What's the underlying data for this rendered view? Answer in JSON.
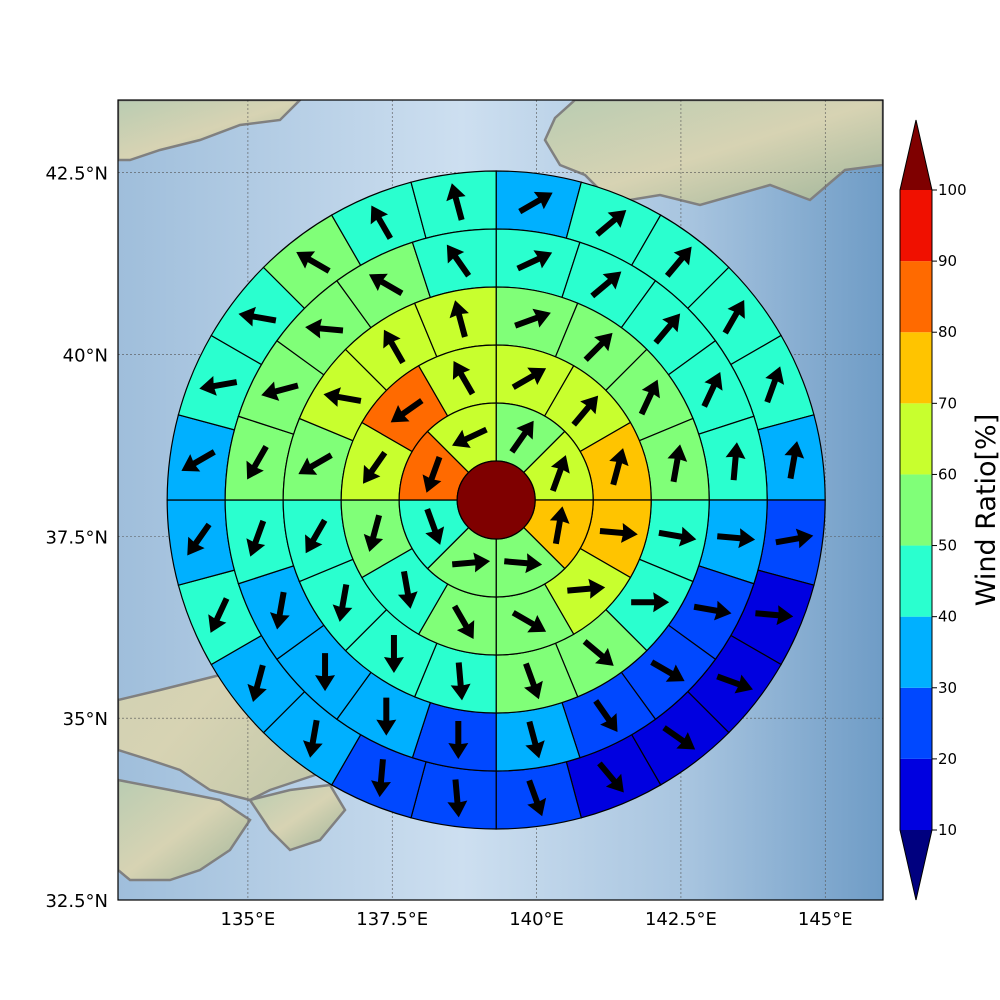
{
  "chart_data": {
    "type": "polar-sector-map",
    "map": {
      "lon_range": [
        132.75,
        146.0
      ],
      "lat_range": [
        32.5,
        43.5
      ],
      "lon_ticks": [
        135,
        137.5,
        140,
        142.5,
        145
      ],
      "lon_tick_labels": [
        "135°E",
        "137.5°E",
        "140°E",
        "142.5°E",
        "145°E"
      ],
      "lat_ticks": [
        32.5,
        35,
        37.5,
        40,
        42.5
      ],
      "lat_tick_labels": [
        "32.5°N",
        "35°N",
        "37.5°N",
        "40°N",
        "42.5°N"
      ],
      "gridlines": true,
      "background": "shaded-relief",
      "coastlines": true
    },
    "center": {
      "lon": 139.3,
      "lat": 38.0
    },
    "center_value": 100,
    "ring_labels_degrees": [
      0.5,
      1.3,
      2.1,
      2.9,
      3.7,
      4.5
    ],
    "rings": [
      {
        "sectors": 8,
        "values": [
          55,
          65,
          75,
          50,
          50,
          45,
          85,
          65
        ]
      },
      {
        "sectors": 12,
        "values": [
          65,
          65,
          75,
          70,
          60,
          55,
          55,
          40,
          55,
          65,
          85,
          65
        ]
      },
      {
        "sectors": 16,
        "values": [
          55,
          55,
          55,
          50,
          45,
          45,
          50,
          55,
          45,
          45,
          40,
          45,
          55,
          65,
          65,
          65
        ]
      },
      {
        "sectors": 20,
        "values": [
          45,
          45,
          45,
          40,
          40,
          35,
          25,
          25,
          25,
          30,
          25,
          35,
          35,
          35,
          40,
          50,
          55,
          55,
          55,
          45
        ]
      },
      {
        "sectors": 24,
        "values": [
          35,
          45,
          45,
          45,
          45,
          35,
          25,
          15,
          15,
          15,
          15,
          25,
          25,
          25,
          35,
          35,
          45,
          35,
          35,
          45,
          45,
          55,
          45,
          45
        ]
      }
    ],
    "arrow_directions_deg": [
      [
        35,
        20,
        10,
        95,
        85,
        160,
        200,
        245
      ],
      [
        60,
        40,
        15,
        95,
        85,
        120,
        150,
        170,
        195,
        215,
        235,
        330
      ],
      [
        70,
        45,
        25,
        10,
        100,
        90,
        130,
        160,
        175,
        180,
        190,
        210,
        240,
        280,
        330,
        345
      ],
      [
        65,
        50,
        40,
        25,
        5,
        95,
        100,
        120,
        145,
        165,
        180,
        180,
        180,
        190,
        200,
        210,
        255,
        275,
        300,
        325
      ],
      [
        60,
        50,
        40,
        30,
        20,
        10,
        80,
        95,
        110,
        125,
        140,
        160,
        175,
        185,
        190,
        195,
        205,
        215,
        240,
        260,
        280,
        300,
        330,
        345
      ]
    ],
    "colorbar": {
      "label": "Wind Ratio[%]",
      "ticks": [
        10,
        20,
        30,
        40,
        50,
        60,
        70,
        80,
        90,
        100
      ],
      "extend": "both",
      "colors": [
        "#00007f",
        "#0000e0",
        "#0048ff",
        "#00b0ff",
        "#2affcf",
        "#80ff78",
        "#c8ff2e",
        "#ffc400",
        "#ff6a00",
        "#f01000",
        "#7f0000"
      ]
    }
  }
}
